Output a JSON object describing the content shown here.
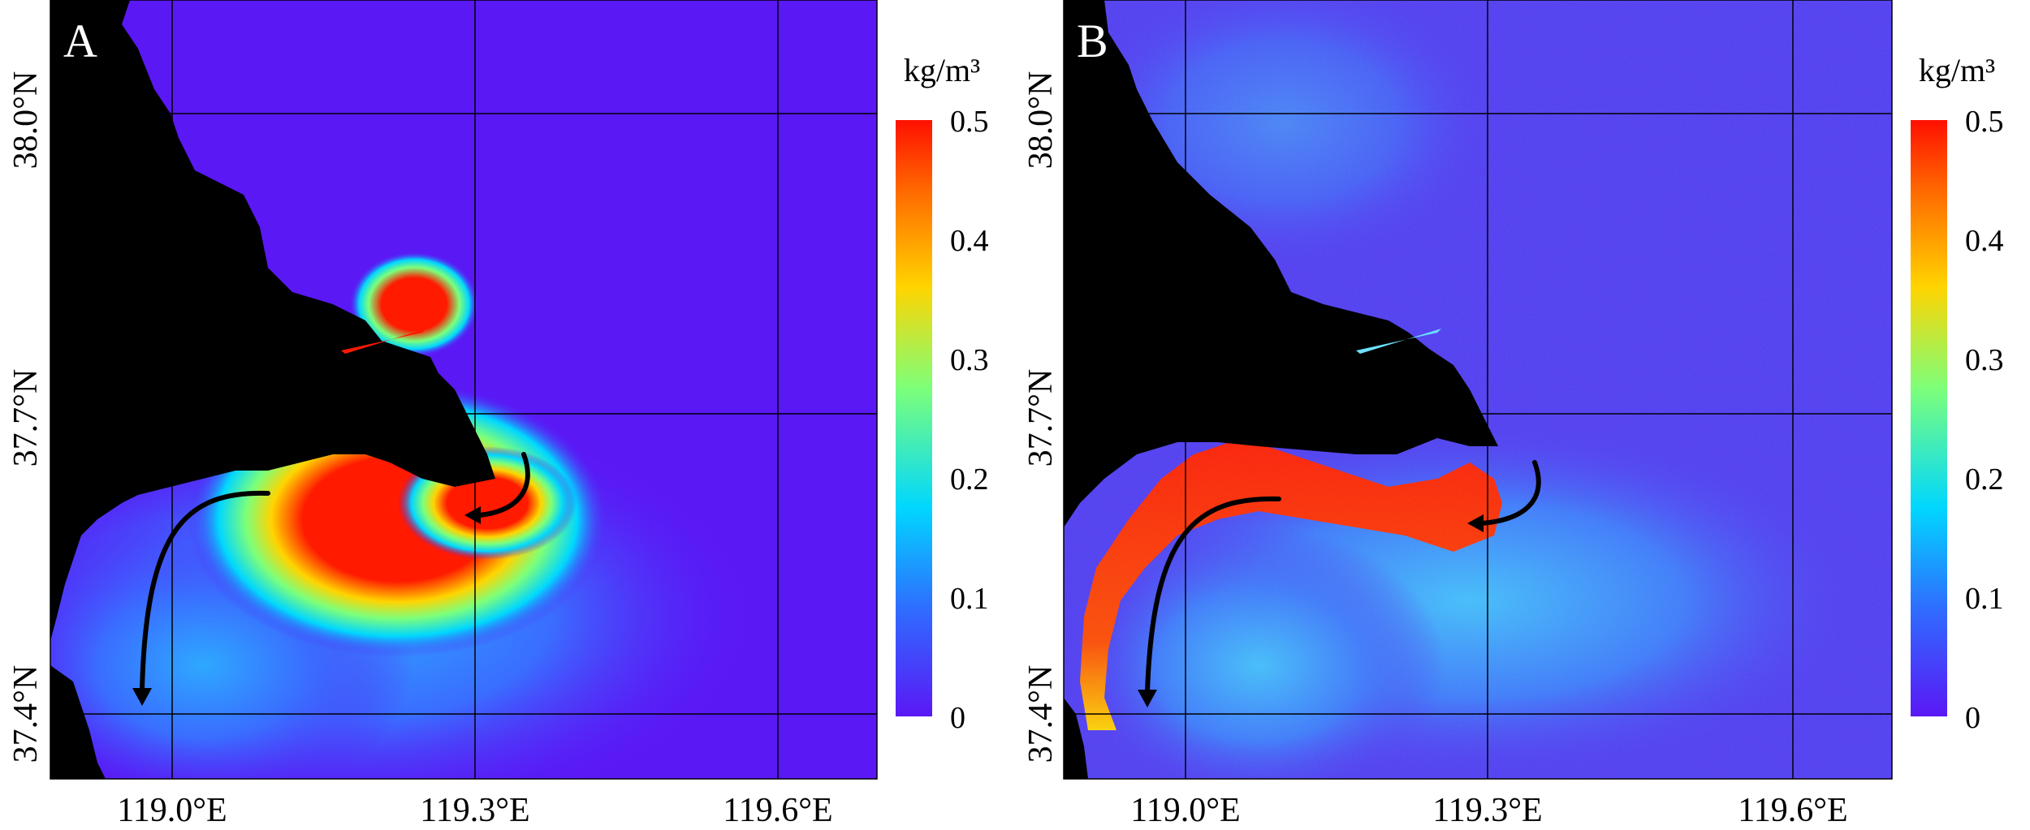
{
  "panels": [
    {
      "id": "A",
      "label": "A",
      "unit": "kg/m³",
      "colorbar_ticks": [
        "0.5",
        "0.4",
        "0.3",
        "0.2",
        "0.1",
        "0"
      ],
      "lat_labels": [
        "38.0°N",
        "37.7°N",
        "37.4°N"
      ],
      "lon_labels": [
        "119.0°E",
        "119.3°E",
        "119.6°E"
      ]
    },
    {
      "id": "B",
      "label": "B",
      "unit": "kg/m³",
      "colorbar_ticks": [
        "0.5",
        "0.4",
        "0.3",
        "0.2",
        "0.1",
        "0"
      ],
      "lat_labels": [
        "38.0°N",
        "37.7°N",
        "37.4°N"
      ],
      "lon_labels": [
        "119.0°E",
        "119.3°E",
        "119.6°E"
      ]
    }
  ],
  "colors": {
    "background_water": "#5a18f5",
    "land": "#000000",
    "high": "#ff1a00",
    "mid": "#7dff7a",
    "low": "#00d7ff"
  },
  "colorbar_range": [
    0,
    0.5
  ]
}
